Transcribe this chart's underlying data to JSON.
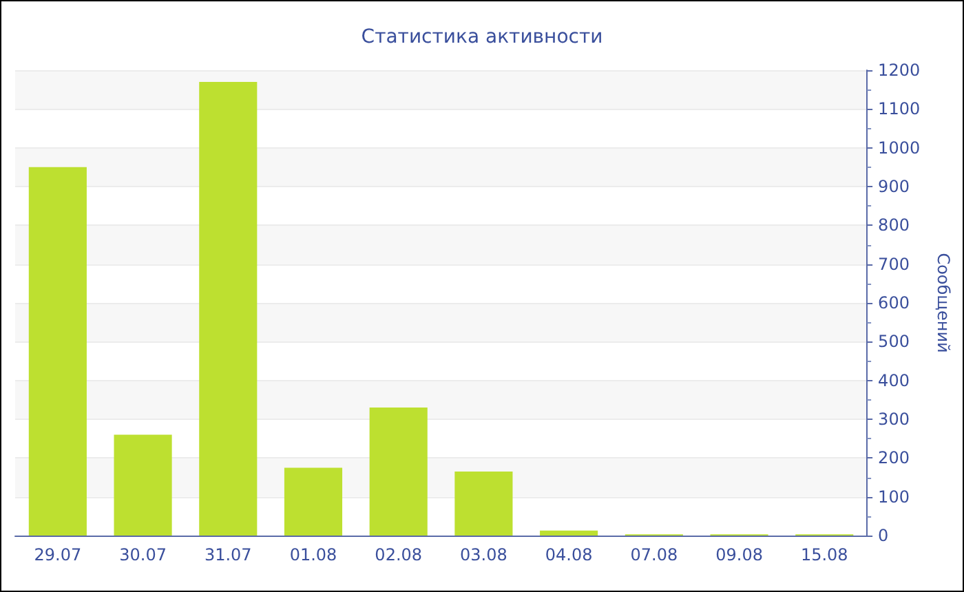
{
  "chart_data": {
    "type": "bar",
    "title": "Статистика активности",
    "ylabel": "Сообщений",
    "categories": [
      "29.07",
      "30.07",
      "31.07",
      "01.08",
      "02.08",
      "03.08",
      "04.08",
      "07.08",
      "09.08",
      "15.08"
    ],
    "values": [
      950,
      260,
      1170,
      175,
      330,
      165,
      13,
      3,
      3,
      3
    ],
    "color": "#bde030",
    "ylim": [
      0,
      1200
    ],
    "yticks": [
      0,
      100,
      200,
      300,
      400,
      500,
      600,
      700,
      800,
      900,
      1000,
      1100,
      1200
    ],
    "grid": "y"
  }
}
